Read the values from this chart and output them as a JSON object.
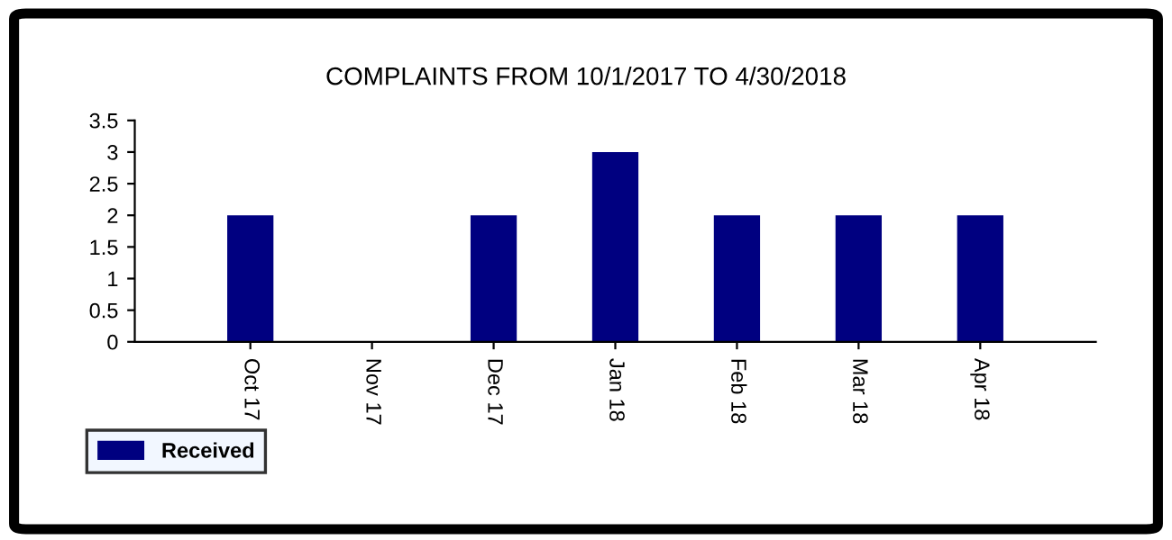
{
  "chart_data": {
    "type": "bar",
    "title": "COMPLAINTS FROM 10/1/2017 TO 4/30/2018",
    "categories": [
      "Oct 17",
      "Nov 17",
      "Dec 17",
      "Jan 18",
      "Feb 18",
      "Mar 18",
      "Apr 18"
    ],
    "series": [
      {
        "name": "Received",
        "color": "#000080",
        "values": [
          2,
          0,
          2,
          3,
          2,
          2,
          2
        ]
      }
    ],
    "ylim": [
      0,
      3.5
    ],
    "yticks": [
      0,
      0.5,
      1,
      1.5,
      2,
      2.5,
      3,
      3.5
    ],
    "grid": false,
    "legend": "bottom left"
  }
}
